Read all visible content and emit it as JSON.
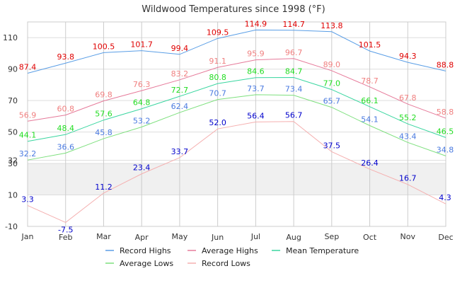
{
  "chart_data": {
    "type": "line",
    "title": "Wildwood Temperatures since 1998 (°F)",
    "xlabel": "",
    "ylabel": "",
    "categories": [
      "Jan",
      "Feb",
      "Mar",
      "Apr",
      "May",
      "Jun",
      "Jul",
      "Aug",
      "Sep",
      "Oct",
      "Nov",
      "Dec"
    ],
    "ylim": [
      -10,
      120
    ],
    "yticks": [
      -10,
      10,
      30,
      32,
      50,
      70,
      90,
      110
    ],
    "freezing_band": [
      10,
      30
    ],
    "legend_position": "bottom",
    "grid": true,
    "series": [
      {
        "name": "Record Highs",
        "color": "#5a9ee6",
        "label_color": "#e00000",
        "values": [
          87.4,
          93.8,
          100.5,
          101.7,
          99.4,
          109.5,
          114.9,
          114.7,
          113.8,
          101.5,
          94.3,
          88.8
        ]
      },
      {
        "name": "Average Highs",
        "color": "#e67a9a",
        "label_color": "#f08080",
        "values": [
          56.9,
          60.8,
          69.8,
          76.3,
          83.2,
          91.1,
          95.9,
          96.7,
          89.0,
          78.7,
          67.8,
          58.8
        ]
      },
      {
        "name": "Mean Temperature",
        "color": "#3ad6a0",
        "label_color": "#22dd22",
        "values": [
          44.1,
          48.4,
          57.6,
          64.8,
          72.7,
          80.8,
          84.6,
          84.7,
          77.0,
          66.1,
          55.2,
          46.5
        ]
      },
      {
        "name": "Average Lows",
        "color": "#7ee07e",
        "label_color": "#4a7ae0",
        "values": [
          32.2,
          36.6,
          45.8,
          53.2,
          62.4,
          70.7,
          73.7,
          73.4,
          65.7,
          54.1,
          43.4,
          34.8
        ]
      },
      {
        "name": "Record Lows",
        "color": "#f5b0b0",
        "label_color": "#0000cc",
        "values": [
          3.3,
          -7.5,
          11.2,
          23.4,
          33.7,
          52.0,
          56.4,
          56.7,
          37.5,
          26.4,
          16.7,
          4.3
        ]
      }
    ]
  }
}
